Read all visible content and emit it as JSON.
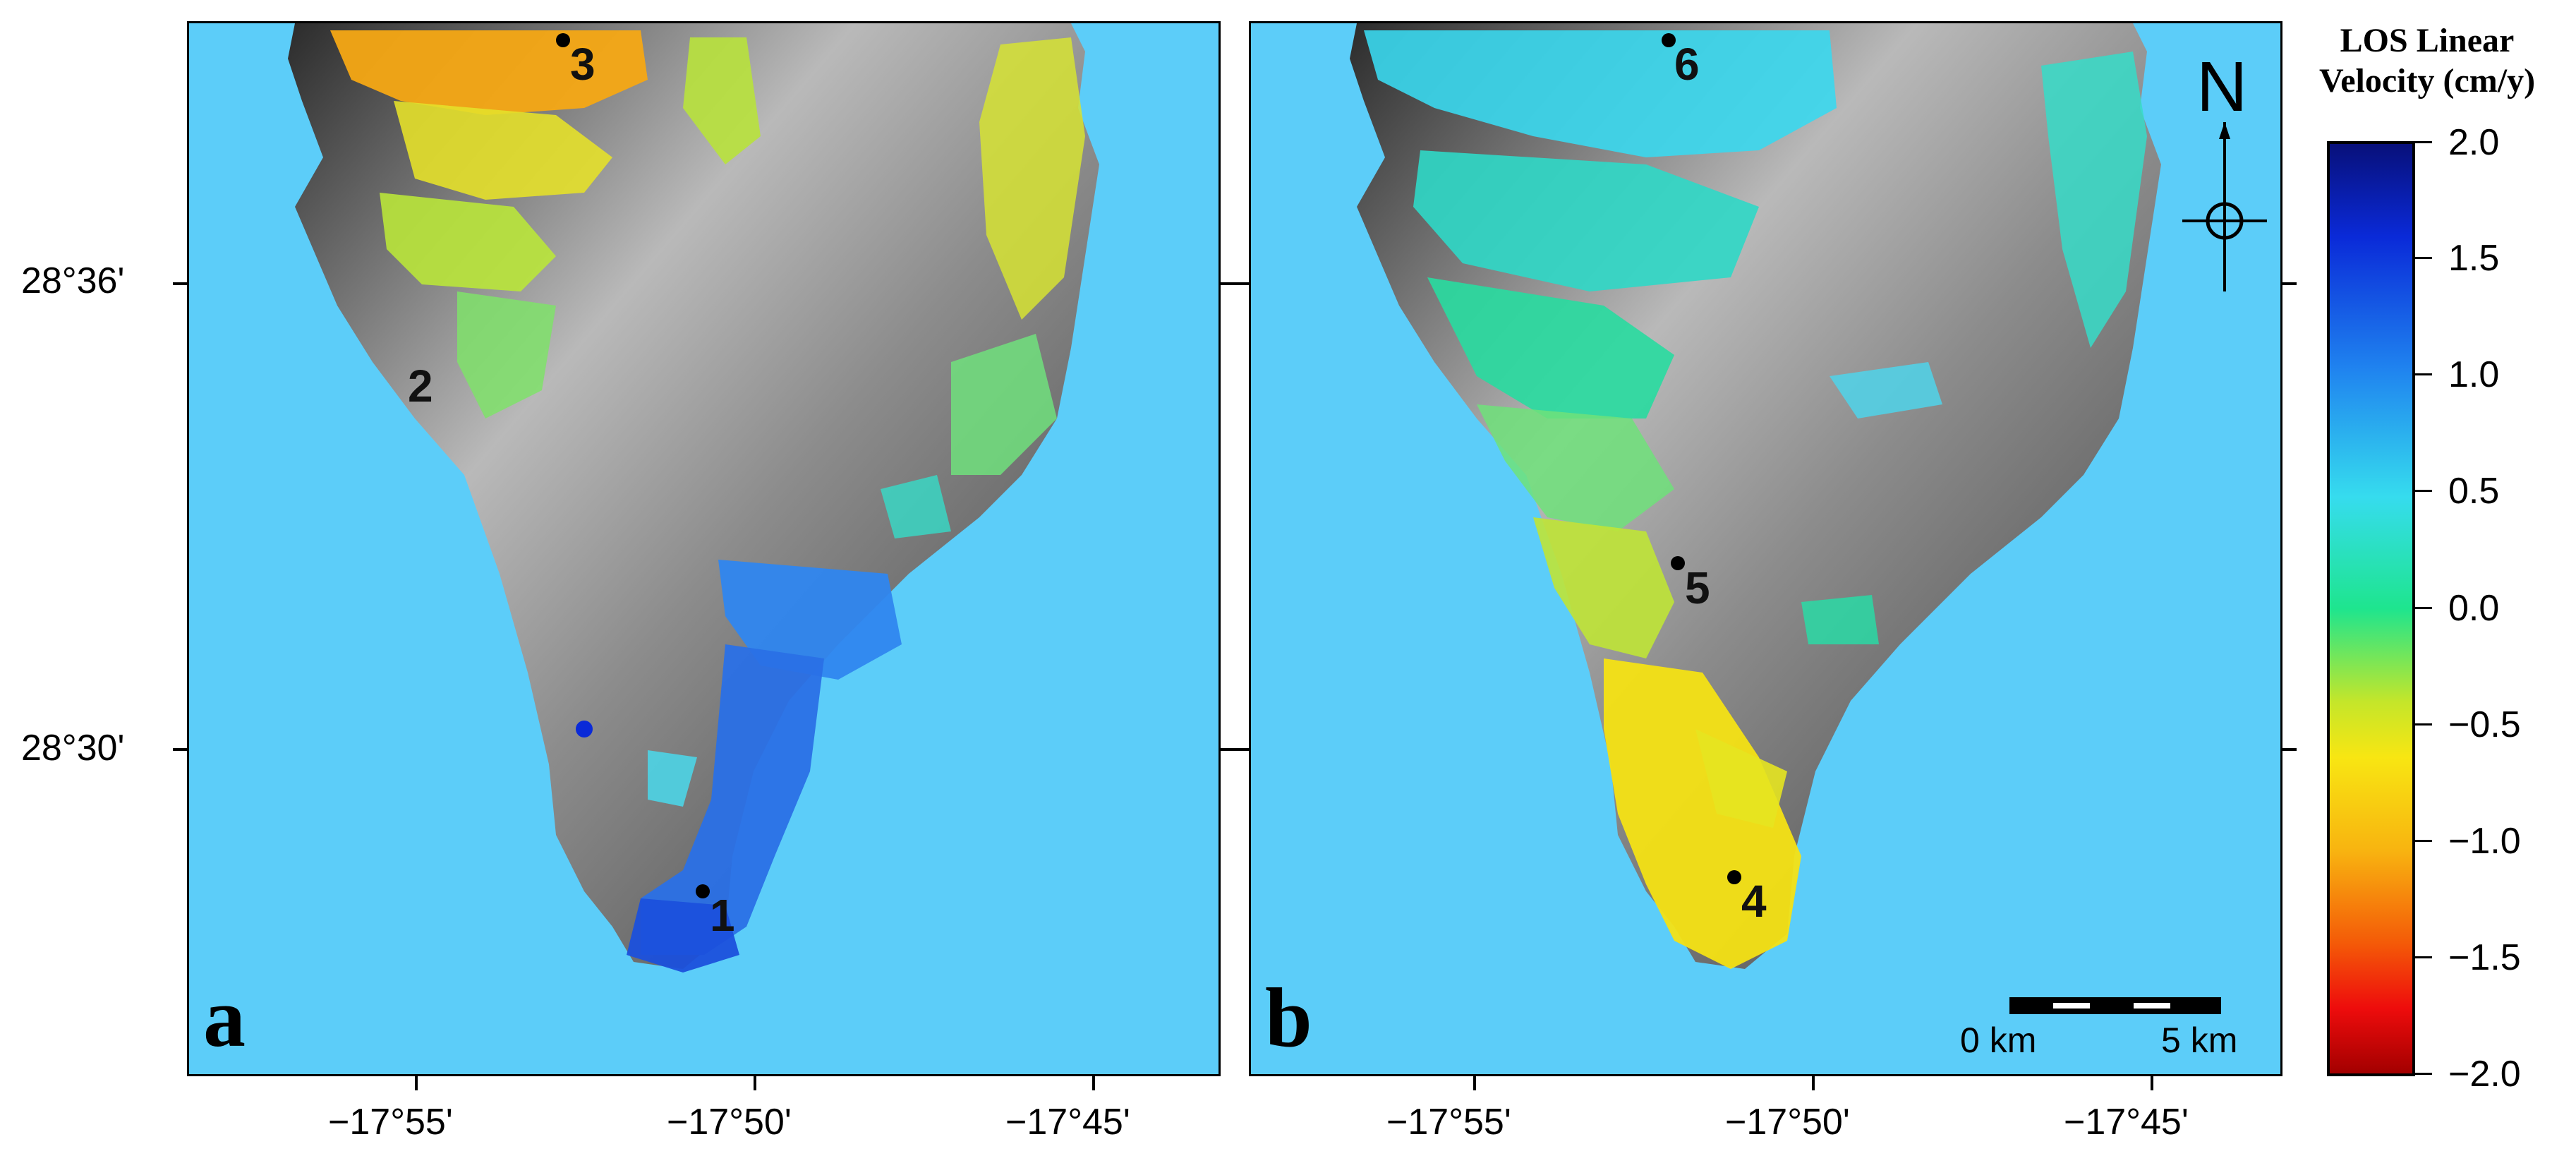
{
  "panels": [
    {
      "letter": "a",
      "sites": [
        {
          "label": "3"
        },
        {
          "label": "2"
        },
        {
          "label": "1"
        }
      ]
    },
    {
      "letter": "b",
      "sites": [
        {
          "label": "6"
        },
        {
          "label": "5"
        },
        {
          "label": "4"
        }
      ]
    }
  ],
  "axes": {
    "lat_labels": [
      "28°36'",
      "28°30'"
    ],
    "lon_labels": [
      "−17°55'",
      "−17°50'",
      "−17°45'"
    ]
  },
  "north_arrow": {
    "label": "N"
  },
  "scale_bar": {
    "start_label": "0 km",
    "end_label": "5 km"
  },
  "colorbar": {
    "title_line1": "LOS Linear",
    "title_line2": "Velocity (cm/y)",
    "tick_labels": [
      "2.0",
      "1.5",
      "1.0",
      "0.5",
      "0.0",
      "−0.5",
      "−1.0",
      "−1.5",
      "−2.0"
    ],
    "range": [
      -2.0,
      2.0
    ]
  },
  "colors": {
    "sea": "#5ccdf9",
    "uplift": "#1f5ae8",
    "stable": "#1ee58e",
    "subsidence": "#f8e612"
  }
}
